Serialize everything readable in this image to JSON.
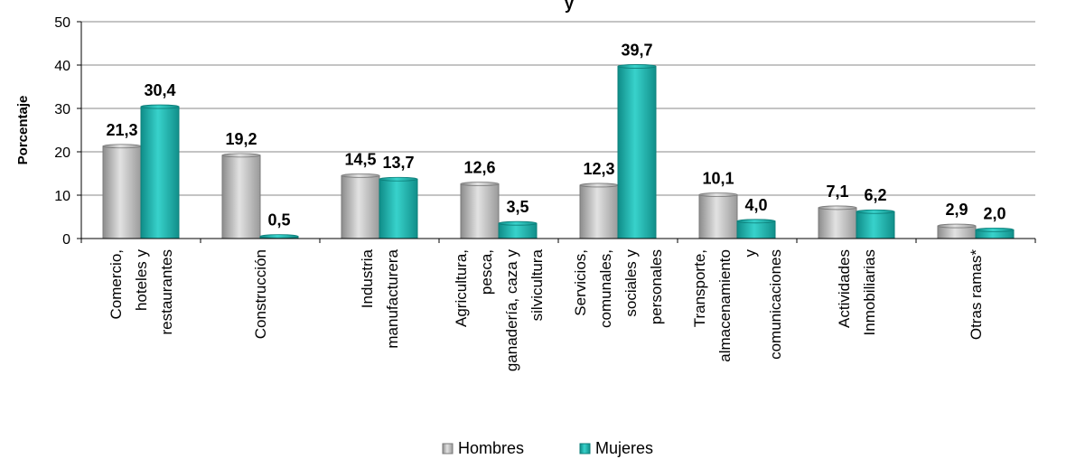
{
  "chart_data": {
    "type": "bar",
    "title_fragment": "y",
    "ylabel": "Porcentaje",
    "ylim": [
      0,
      50
    ],
    "yticks": [
      0,
      10,
      20,
      30,
      40,
      50
    ],
    "grid": true,
    "legend_position": "bottom",
    "categories": [
      [
        "Comercio,",
        "hoteles y",
        "restaurantes"
      ],
      [
        "Construcción"
      ],
      [
        "Industria",
        "manufacturera"
      ],
      [
        "Agricultura,",
        "pesca,",
        "ganadería, caza y",
        "silvicultura"
      ],
      [
        "Servicios,",
        "comunales,",
        "sociales y",
        "personales"
      ],
      [
        "Transporte,",
        "almacenamiento",
        "y",
        "comunicaciones"
      ],
      [
        "Actividades",
        "Inmobiliarias"
      ],
      [
        "Otras ramas*"
      ]
    ],
    "series": [
      {
        "name": "Hombres",
        "color": "#b8b8b8",
        "values": [
          21.3,
          19.2,
          14.5,
          12.6,
          12.3,
          10.1,
          7.1,
          2.9
        ],
        "labels": [
          "21,3",
          "19,2",
          "14,5",
          "12,6",
          "12,3",
          "10,1",
          "7,1",
          "2,9"
        ]
      },
      {
        "name": "Mujeres",
        "color": "#1fb3ad",
        "values": [
          30.4,
          0.5,
          13.7,
          3.5,
          39.7,
          4.0,
          6.2,
          2.0
        ],
        "labels": [
          "30,4",
          "0,5",
          "13,7",
          "3,5",
          "39,7",
          "4,0",
          "6,2",
          "2,0"
        ]
      }
    ]
  }
}
